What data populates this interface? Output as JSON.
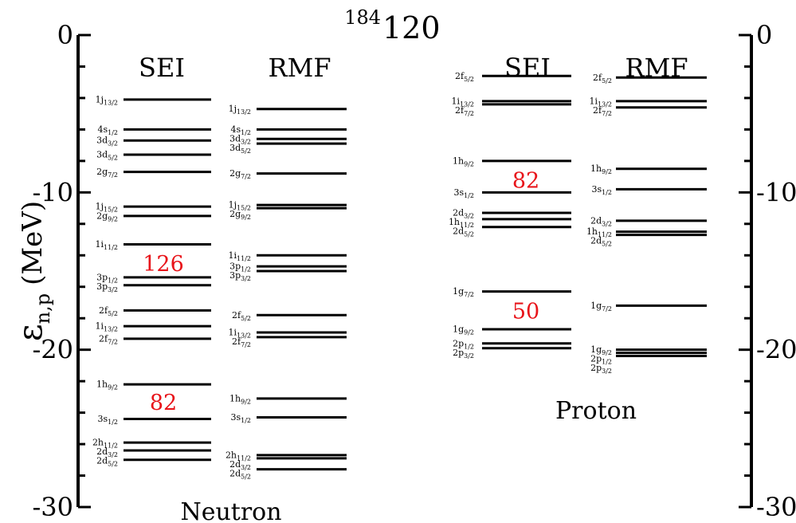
{
  "chart_data": {
    "type": "level-diagram",
    "title": {
      "mass": "184",
      "element": "120"
    },
    "ylabel": {
      "main": "ε",
      "sub": "n,p",
      "unit": "(MeV)"
    },
    "ylim": [
      -30,
      0
    ],
    "y_ticks": [
      0,
      -10,
      -20,
      -30
    ],
    "y_tick_labels": [
      "0",
      "-10",
      "-20",
      "-30"
    ],
    "panels": [
      {
        "id": "neutron",
        "label": "Neutron",
        "columns": [
          {
            "id": "neutron-sei",
            "label": "SEI",
            "levels": [
              {
                "state": "1j",
                "j": "13/2",
                "energy": -4.1
              },
              {
                "state": "4s",
                "j": "1/2",
                "energy": -6.0
              },
              {
                "state": "3d",
                "j": "3/2",
                "energy": -6.7
              },
              {
                "state": "3d",
                "j": "5/2",
                "energy": -7.6
              },
              {
                "state": "2g",
                "j": "7/2",
                "energy": -8.7
              },
              {
                "state": "1j",
                "j": "15/2",
                "energy": -10.9
              },
              {
                "state": "2g",
                "j": "9/2",
                "energy": -11.5
              },
              {
                "state": "1i",
                "j": "11/2",
                "energy": -13.3
              },
              {
                "state": "3p",
                "j": "1/2",
                "energy": -15.4
              },
              {
                "state": "3p",
                "j": "3/2",
                "energy": -15.9
              },
              {
                "state": "2f",
                "j": "5/2",
                "energy": -17.5
              },
              {
                "state": "1i",
                "j": "13/2",
                "energy": -18.5
              },
              {
                "state": "2f",
                "j": "7/2",
                "energy": -19.3
              },
              {
                "state": "1h",
                "j": "9/2",
                "energy": -22.2
              },
              {
                "state": "3s",
                "j": "1/2",
                "energy": -24.4
              },
              {
                "state": "2h",
                "j": "11/2",
                "energy": -25.9
              },
              {
                "state": "2d",
                "j": "3/2",
                "energy": -26.4
              },
              {
                "state": "2d",
                "j": "5/2",
                "energy": -27.0
              }
            ]
          },
          {
            "id": "neutron-rmf",
            "label": "RMF",
            "levels": [
              {
                "state": "1j",
                "j": "13/2",
                "energy": -4.7
              },
              {
                "state": "4s",
                "j": "1/2",
                "energy": -6.0
              },
              {
                "state": "3d",
                "j": "3/2",
                "energy": -6.6
              },
              {
                "state": "3d",
                "j": "5/2",
                "energy": -6.9
              },
              {
                "state": "2g",
                "j": "7/2",
                "energy": -8.8
              },
              {
                "state": "1j",
                "j": "15/2",
                "energy": -10.8
              },
              {
                "state": "2g",
                "j": "9/2",
                "energy": -11.0
              },
              {
                "state": "1i",
                "j": "11/2",
                "energy": -14.0
              },
              {
                "state": "3p",
                "j": "1/2",
                "energy": -14.7
              },
              {
                "state": "3p",
                "j": "3/2",
                "energy": -15.0
              },
              {
                "state": "2f",
                "j": "5/2",
                "energy": -17.8
              },
              {
                "state": "1i",
                "j": "13/2",
                "energy": -18.9
              },
              {
                "state": "2f",
                "j": "7/2",
                "energy": -19.2
              },
              {
                "state": "1h",
                "j": "9/2",
                "energy": -23.1
              },
              {
                "state": "3s",
                "j": "1/2",
                "energy": -24.3
              },
              {
                "state": "2h",
                "j": "11/2",
                "energy": -26.7
              },
              {
                "state": "2d",
                "j": "3/2",
                "energy": -26.9
              },
              {
                "state": "2d",
                "j": "5/2",
                "energy": -27.6
              }
            ]
          }
        ],
        "magic_numbers": [
          {
            "value": "126",
            "energy": -14.5
          },
          {
            "value": "82",
            "energy": -23.3
          }
        ]
      },
      {
        "id": "proton",
        "label": "Proton",
        "columns": [
          {
            "id": "proton-sei",
            "label": "SEI",
            "levels": [
              {
                "state": "2f",
                "j": "5/2",
                "energy": -2.6
              },
              {
                "state": "1i",
                "j": "13/2",
                "energy": -4.2
              },
              {
                "state": "2f",
                "j": "7/2",
                "energy": -4.4
              },
              {
                "state": "1h",
                "j": "9/2",
                "energy": -8.0
              },
              {
                "state": "3s",
                "j": "1/2",
                "energy": -10.0
              },
              {
                "state": "2d",
                "j": "3/2",
                "energy": -11.3
              },
              {
                "state": "1h",
                "j": "11/2",
                "energy": -11.7
              },
              {
                "state": "2d",
                "j": "5/2",
                "energy": -12.2
              },
              {
                "state": "1g",
                "j": "7/2",
                "energy": -16.3
              },
              {
                "state": "1g",
                "j": "9/2",
                "energy": -18.7
              },
              {
                "state": "2p",
                "j": "1/2",
                "energy": -19.6
              },
              {
                "state": "2p",
                "j": "3/2",
                "energy": -19.9
              }
            ]
          },
          {
            "id": "proton-rmf",
            "label": "RMF",
            "levels": [
              {
                "state": "2f",
                "j": "5/2",
                "energy": -2.7
              },
              {
                "state": "1i",
                "j": "13/2",
                "energy": -4.2
              },
              {
                "state": "2f",
                "j": "7/2",
                "energy": -4.6
              },
              {
                "state": "1h",
                "j": "9/2",
                "energy": -8.5
              },
              {
                "state": "3s",
                "j": "1/2",
                "energy": -9.8
              },
              {
                "state": "2d",
                "j": "3/2",
                "energy": -11.8
              },
              {
                "state": "1h",
                "j": "11/2",
                "energy": -12.5
              },
              {
                "state": "2d",
                "j": "5/2",
                "energy": -12.7
              },
              {
                "state": "1g",
                "j": "7/2",
                "energy": -17.2
              },
              {
                "state": "1g",
                "j": "9/2",
                "energy": -20.0
              },
              {
                "state": "2p",
                "j": "1/2",
                "energy": -20.2
              },
              {
                "state": "2p",
                "j": "3/2",
                "energy": -20.4
              }
            ]
          }
        ],
        "magic_numbers": [
          {
            "value": "82",
            "energy": -9.2
          },
          {
            "value": "50",
            "energy": -17.5
          }
        ]
      }
    ]
  },
  "colors": {
    "levels": "#000000",
    "axis": "#000000",
    "magic": "#e8141a",
    "text": "#000000"
  }
}
